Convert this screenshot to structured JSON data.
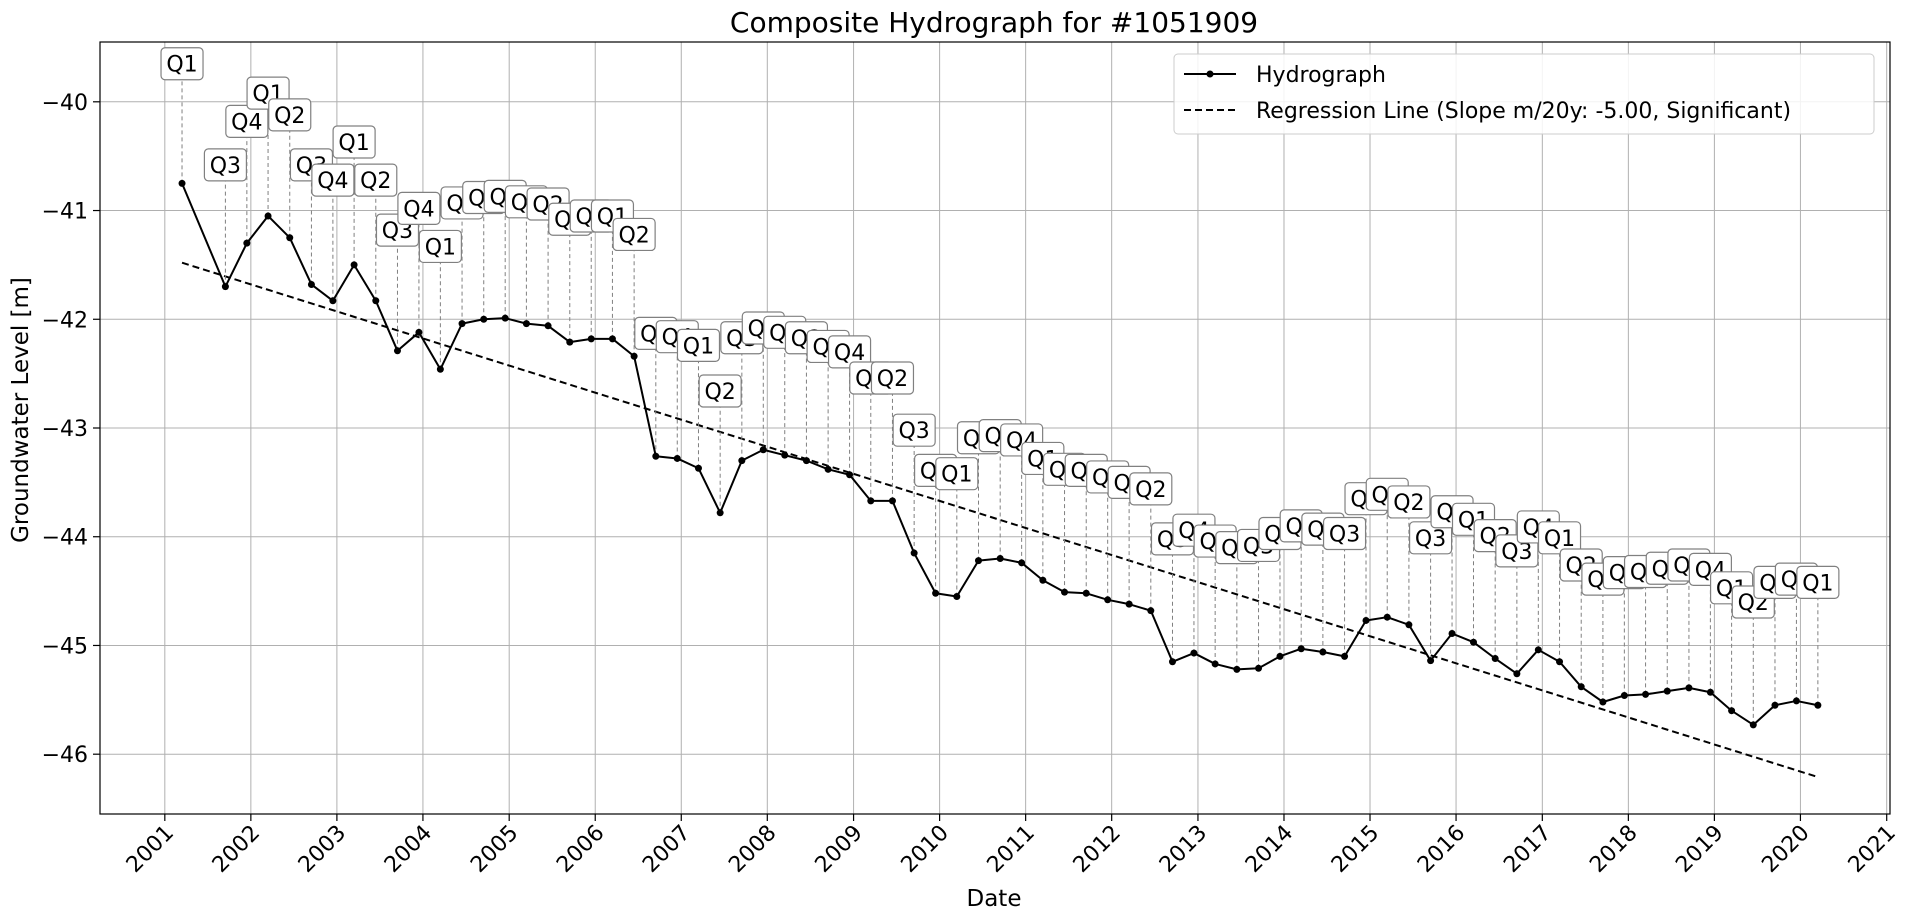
{
  "chart_data": {
    "type": "line",
    "title": "Composite Hydrograph for  #1051909",
    "xlabel": "Date",
    "ylabel": "Groundwater Level [m]",
    "ylim": [
      -46.55,
      -39.45
    ],
    "xlim": [
      "2000-04-01",
      "2021-01-15"
    ],
    "y_ticks": [
      -40,
      -41,
      -42,
      -43,
      -44,
      -45,
      -46
    ],
    "x_ticks": [
      "2001",
      "2002",
      "2003",
      "2004",
      "2005",
      "2006",
      "2007",
      "2008",
      "2009",
      "2010",
      "2011",
      "2012",
      "2013",
      "2014",
      "2015",
      "2016",
      "2017",
      "2018",
      "2019",
      "2020",
      "2021"
    ],
    "grid": true,
    "legend_position": "top-right",
    "series": [
      {
        "name": "Hydrograph",
        "style": "solid line with dot markers",
        "color": "#000000",
        "points": [
          {
            "x": "2001-03-15",
            "y": -40.75,
            "q": "Q1"
          },
          {
            "x": "2001-09-15",
            "y": -41.7,
            "q": "Q3"
          },
          {
            "x": "2001-12-15",
            "y": -41.3,
            "q": "Q4"
          },
          {
            "x": "2002-03-15",
            "y": -41.05,
            "q": "Q1"
          },
          {
            "x": "2002-06-15",
            "y": -41.25,
            "q": "Q2"
          },
          {
            "x": "2002-09-15",
            "y": -41.68,
            "q": "Q3"
          },
          {
            "x": "2002-12-15",
            "y": -41.83,
            "q": "Q4"
          },
          {
            "x": "2003-03-15",
            "y": -41.5,
            "q": "Q1"
          },
          {
            "x": "2003-06-15",
            "y": -41.83,
            "q": "Q2"
          },
          {
            "x": "2003-09-15",
            "y": -42.29,
            "q": "Q3"
          },
          {
            "x": "2003-12-15",
            "y": -42.12,
            "q": "Q4"
          },
          {
            "x": "2004-03-15",
            "y": -42.46,
            "q": "Q1"
          },
          {
            "x": "2004-06-15",
            "y": -42.04,
            "q": "Q2"
          },
          {
            "x": "2004-09-15",
            "y": -42.0,
            "q": "Q3"
          },
          {
            "x": "2004-12-15",
            "y": -41.99,
            "q": "Q4"
          },
          {
            "x": "2005-03-15",
            "y": -42.04,
            "q": "Q1"
          },
          {
            "x": "2005-06-15",
            "y": -42.06,
            "q": "Q2"
          },
          {
            "x": "2005-09-15",
            "y": -42.21,
            "q": "Q3"
          },
          {
            "x": "2005-12-15",
            "y": -42.18,
            "q": "Q4"
          },
          {
            "x": "2006-03-15",
            "y": -42.18,
            "q": "Q1"
          },
          {
            "x": "2006-06-15",
            "y": -42.34,
            "q": "Q2"
          },
          {
            "x": "2006-09-15",
            "y": -43.26,
            "q": "Q3"
          },
          {
            "x": "2006-12-15",
            "y": -43.28,
            "q": "Q4"
          },
          {
            "x": "2007-03-15",
            "y": -43.37,
            "q": "Q1"
          },
          {
            "x": "2007-06-15",
            "y": -43.78,
            "q": "Q2"
          },
          {
            "x": "2007-09-15",
            "y": -43.3,
            "q": "Q3"
          },
          {
            "x": "2007-12-15",
            "y": -43.2,
            "q": "Q4"
          },
          {
            "x": "2008-03-15",
            "y": -43.25,
            "q": "Q1"
          },
          {
            "x": "2008-06-15",
            "y": -43.3,
            "q": "Q2"
          },
          {
            "x": "2008-09-15",
            "y": -43.38,
            "q": "Q3"
          },
          {
            "x": "2008-12-15",
            "y": -43.43,
            "q": "Q4"
          },
          {
            "x": "2009-03-15",
            "y": -43.67,
            "q": "Q1"
          },
          {
            "x": "2009-06-15",
            "y": -43.67,
            "q": "Q2"
          },
          {
            "x": "2009-09-15",
            "y": -44.15,
            "q": "Q3"
          },
          {
            "x": "2009-12-15",
            "y": -44.52,
            "q": "Q4"
          },
          {
            "x": "2010-03-15",
            "y": -44.55,
            "q": "Q1"
          },
          {
            "x": "2010-06-15",
            "y": -44.22,
            "q": "Q2"
          },
          {
            "x": "2010-09-15",
            "y": -44.2,
            "q": "Q3"
          },
          {
            "x": "2010-12-15",
            "y": -44.24,
            "q": "Q4"
          },
          {
            "x": "2011-03-15",
            "y": -44.4,
            "q": "Q1"
          },
          {
            "x": "2011-06-15",
            "y": -44.51,
            "q": "Q2"
          },
          {
            "x": "2011-09-15",
            "y": -44.52,
            "q": "Q3"
          },
          {
            "x": "2011-12-15",
            "y": -44.58,
            "q": "Q4"
          },
          {
            "x": "2012-03-15",
            "y": -44.62,
            "q": "Q1"
          },
          {
            "x": "2012-06-15",
            "y": -44.68,
            "q": "Q2"
          },
          {
            "x": "2012-09-15",
            "y": -45.15,
            "q": "Q3"
          },
          {
            "x": "2012-12-15",
            "y": -45.07,
            "q": "Q4"
          },
          {
            "x": "2013-03-15",
            "y": -45.17,
            "q": "Q1"
          },
          {
            "x": "2013-06-15",
            "y": -45.22,
            "q": "Q2"
          },
          {
            "x": "2013-09-15",
            "y": -45.21,
            "q": "Q3"
          },
          {
            "x": "2013-12-15",
            "y": -45.1,
            "q": "Q4"
          },
          {
            "x": "2014-03-15",
            "y": -45.03,
            "q": "Q1"
          },
          {
            "x": "2014-06-15",
            "y": -45.06,
            "q": "Q2"
          },
          {
            "x": "2014-09-15",
            "y": -45.1,
            "q": "Q3"
          },
          {
            "x": "2014-12-15",
            "y": -44.77,
            "q": "Q4"
          },
          {
            "x": "2015-03-15",
            "y": -44.74,
            "q": "Q1"
          },
          {
            "x": "2015-06-15",
            "y": -44.81,
            "q": "Q2"
          },
          {
            "x": "2015-09-15",
            "y": -45.14,
            "q": "Q3"
          },
          {
            "x": "2015-12-15",
            "y": -44.89,
            "q": "Q4"
          },
          {
            "x": "2016-03-15",
            "y": -44.97,
            "q": "Q1"
          },
          {
            "x": "2016-06-15",
            "y": -45.12,
            "q": "Q2"
          },
          {
            "x": "2016-09-15",
            "y": -45.26,
            "q": "Q3"
          },
          {
            "x": "2016-12-15",
            "y": -45.04,
            "q": "Q4"
          },
          {
            "x": "2017-03-15",
            "y": -45.15,
            "q": "Q1"
          },
          {
            "x": "2017-06-15",
            "y": -45.38,
            "q": "Q2"
          },
          {
            "x": "2017-09-15",
            "y": -45.52,
            "q": "Q3"
          },
          {
            "x": "2017-12-15",
            "y": -45.46,
            "q": "Q4"
          },
          {
            "x": "2018-03-15",
            "y": -45.45,
            "q": "Q1"
          },
          {
            "x": "2018-06-15",
            "y": -45.42,
            "q": "Q2"
          },
          {
            "x": "2018-09-15",
            "y": -45.39,
            "q": "Q3"
          },
          {
            "x": "2018-12-15",
            "y": -45.43,
            "q": "Q4"
          },
          {
            "x": "2019-03-15",
            "y": -45.6,
            "q": "Q1"
          },
          {
            "x": "2019-06-15",
            "y": -45.73,
            "q": "Q2"
          },
          {
            "x": "2019-09-15",
            "y": -45.55,
            "q": "Q3"
          },
          {
            "x": "2019-12-15",
            "y": -45.51,
            "q": "Q4"
          },
          {
            "x": "2020-03-15",
            "y": -45.55,
            "q": "Q1"
          }
        ],
        "label_heights": [
          -39.65,
          -40.58,
          -40.18,
          -39.92,
          -40.12,
          -40.58,
          -40.72,
          -40.37,
          -40.72,
          -41.18,
          -40.98,
          -41.33,
          -40.93,
          -40.88,
          -40.87,
          -40.92,
          -40.94,
          -41.08,
          -41.05,
          -41.05,
          -41.22,
          -42.13,
          -42.16,
          -42.24,
          -42.66,
          -42.17,
          -42.08,
          -42.12,
          -42.17,
          -42.25,
          -42.3,
          -42.54,
          -42.54,
          -43.02,
          -43.39,
          -43.42,
          -43.09,
          -43.07,
          -43.11,
          -43.28,
          -43.38,
          -43.39,
          -43.45,
          -43.5,
          -43.56,
          -44.02,
          -43.94,
          -44.04,
          -44.1,
          -44.08,
          -43.97,
          -43.9,
          -43.93,
          -43.97,
          -43.65,
          -43.61,
          -43.68,
          -44.01,
          -43.77,
          -43.84,
          -43.99,
          -44.13,
          -43.91,
          -44.01,
          -44.26,
          -44.39,
          -44.33,
          -44.32,
          -44.29,
          -44.26,
          -44.3,
          -44.47,
          -44.6,
          -44.42,
          -44.39,
          -44.42
        ]
      },
      {
        "name": "Regression Line (Slope m/20y: -5.00, Significant)",
        "style": "dashed",
        "color": "#000000",
        "points": [
          {
            "x": "2001-03-15",
            "y": -41.48
          },
          {
            "x": "2020-03-15",
            "y": -46.21
          }
        ]
      }
    ]
  }
}
